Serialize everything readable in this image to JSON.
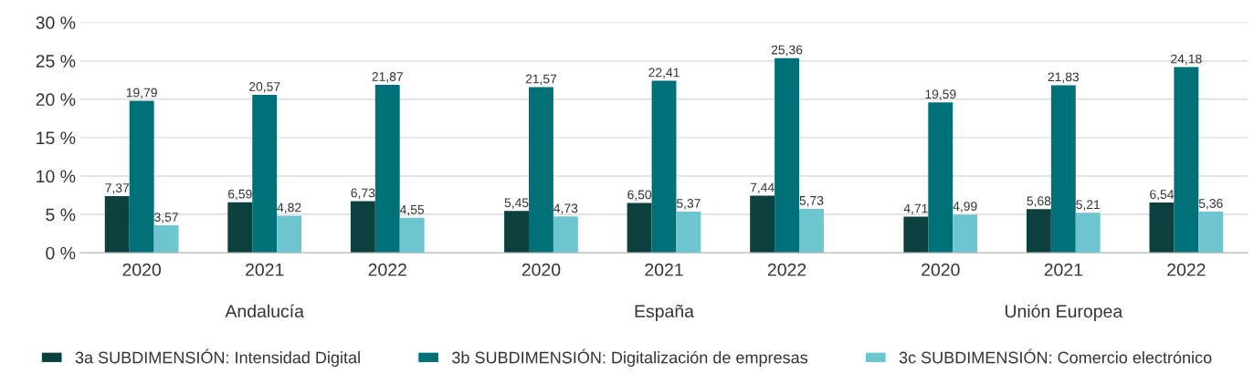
{
  "chart_data": {
    "type": "bar",
    "categories": [
      "2020",
      "2021",
      "2022",
      "2020",
      "2021",
      "2022",
      "2020",
      "2021",
      "2022"
    ],
    "annotations": [
      "Andalucía",
      "España",
      "Unión Europea"
    ],
    "series": [
      {
        "name": "3a SUBDIMENSIÓN: Intensidad Digital",
        "color": "#0b403f",
        "values": [
          7.37,
          6.59,
          6.73,
          5.45,
          6.5,
          7.44,
          4.71,
          5.68,
          6.54
        ],
        "value_labels": [
          "7,37",
          "6,59",
          "6,73",
          "5,45",
          "6,50",
          "7,44",
          "4,71",
          "5,68",
          "6,54"
        ]
      },
      {
        "name": "3b SUBDIMENSIÓN: Digitalización de empresas",
        "color": "#007178",
        "values": [
          19.79,
          20.57,
          21.87,
          21.57,
          22.41,
          25.36,
          19.59,
          21.83,
          24.18
        ],
        "value_labels": [
          "19,79",
          "20,57",
          "21,87",
          "21,57",
          "22,41",
          "25,36",
          "19,59",
          "21,83",
          "24,18"
        ]
      },
      {
        "name": "3c SUBDIMENSIÓN: Comercio electrónico",
        "color": "#6cc5cf",
        "values": [
          3.57,
          4.82,
          4.55,
          4.73,
          5.37,
          5.73,
          4.99,
          5.21,
          5.36
        ],
        "value_labels": [
          "3,57",
          "4,82",
          "4,55",
          "4,73",
          "5,37",
          "5,73",
          "4,99",
          "5,21",
          "5,36"
        ]
      }
    ],
    "ylim": [
      0,
      30
    ],
    "yticks": [
      {
        "value": 0,
        "label": "0 %"
      },
      {
        "value": 5,
        "label": "5 %"
      },
      {
        "value": 10,
        "label": "10 %"
      },
      {
        "value": 15,
        "label": "15 %"
      },
      {
        "value": 20,
        "label": "20 %"
      },
      {
        "value": 25,
        "label": "25 %"
      },
      {
        "value": 30,
        "label": "30 %"
      }
    ],
    "grid": "y",
    "legend": "bottom"
  }
}
